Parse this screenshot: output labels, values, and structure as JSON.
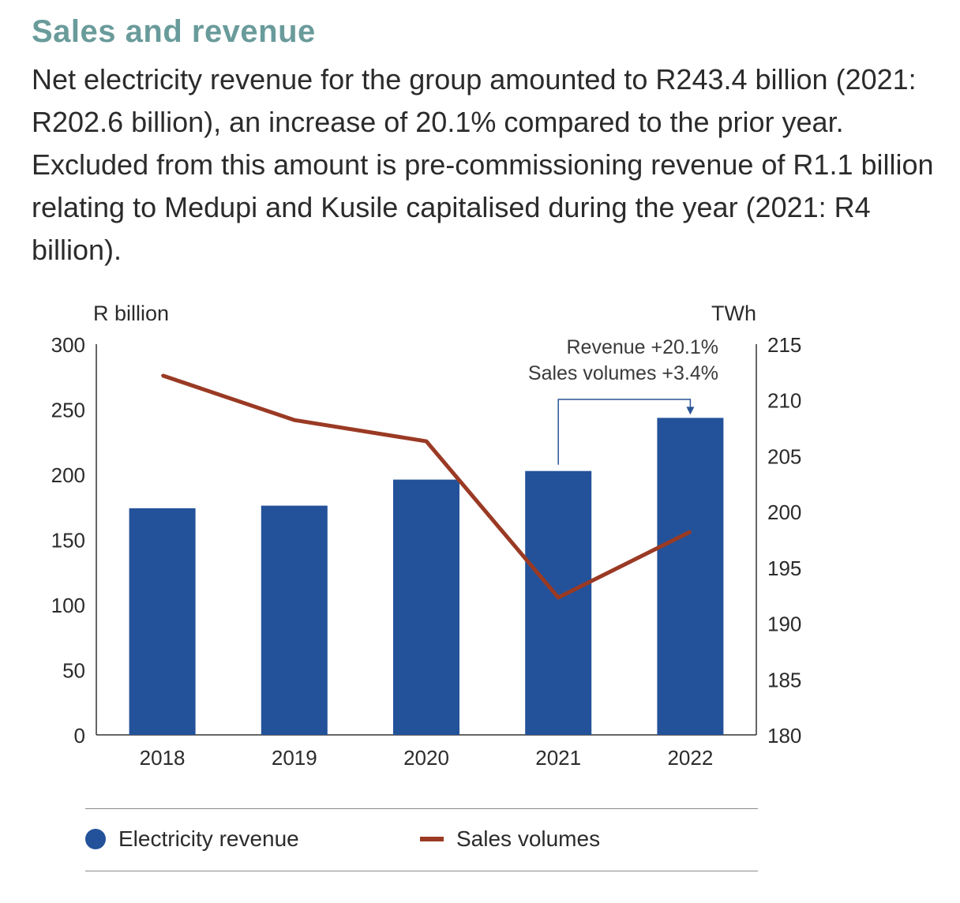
{
  "header": {
    "title": "Sales and revenue",
    "intro": "Net electricity revenue for the group amounted to R243.4 billion (2021: R202.6 billion), an increase of 20.1% compared to the prior year. Excluded from this amount is pre-commissioning revenue of R1.1 billion relating to Medupi and Kusile capitalised during the year (2021: R4 billion)."
  },
  "chart_data": {
    "type": "bar",
    "categories": [
      "2018",
      "2019",
      "2020",
      "2021",
      "2022"
    ],
    "series": [
      {
        "name": "Electricity revenue",
        "type": "bar",
        "axis": "left",
        "values": [
          174,
          176,
          196,
          202.6,
          243.4
        ],
        "color": "#23529a"
      },
      {
        "name": "Sales volumes",
        "type": "line",
        "axis": "right",
        "values": [
          212.2,
          208.2,
          206.3,
          192.3,
          198.2
        ],
        "color": "#9a3a24"
      }
    ],
    "y_left": {
      "label": "R billion",
      "ylim": [
        0,
        300
      ],
      "ticks": [
        0,
        50,
        100,
        150,
        200,
        250,
        300
      ]
    },
    "y_right": {
      "label": "TWh",
      "ylim": [
        180,
        215
      ],
      "ticks": [
        180,
        185,
        190,
        195,
        200,
        205,
        210,
        215
      ]
    },
    "annotation": {
      "lines": [
        "Revenue +20.1%",
        "Sales volumes +3.4%"
      ],
      "from": "2021",
      "to": "2022",
      "color": "#2a5596"
    },
    "legend": {
      "placement": "bottom"
    },
    "grid": false
  }
}
